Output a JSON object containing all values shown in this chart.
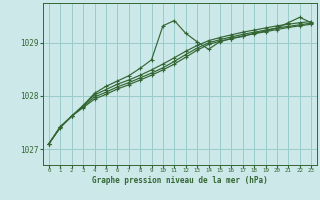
{
  "bg_color": "#cce8e8",
  "grid_color": "#99cccc",
  "line_color": "#336633",
  "ylim": [
    1026.7,
    1029.75
  ],
  "xlim": [
    -0.5,
    23.5
  ],
  "yticks": [
    1027,
    1028,
    1029
  ],
  "xticks": [
    0,
    1,
    2,
    3,
    4,
    5,
    6,
    7,
    8,
    9,
    10,
    11,
    12,
    13,
    14,
    15,
    16,
    17,
    18,
    19,
    20,
    21,
    22,
    23
  ],
  "xlabel": "Graphe pression niveau de la mer (hPa)",
  "series": [
    [
      1027.1,
      1027.4,
      1027.62,
      1027.82,
      1028.05,
      1028.18,
      1028.28,
      1028.38,
      1028.52,
      1028.68,
      1029.32,
      1029.42,
      1029.18,
      1029.02,
      1028.88,
      1029.02,
      1029.08,
      1029.12,
      1029.18,
      1029.22,
      1029.28,
      1029.38,
      1029.48,
      1029.38
    ],
    [
      1027.1,
      1027.42,
      1027.62,
      1027.82,
      1028.02,
      1028.12,
      1028.22,
      1028.3,
      1028.39,
      1028.49,
      1028.6,
      1028.72,
      1028.84,
      1028.95,
      1029.04,
      1029.1,
      1029.15,
      1029.2,
      1029.24,
      1029.28,
      1029.32,
      1029.35,
      1029.38,
      1029.4
    ],
    [
      1027.1,
      1027.42,
      1027.62,
      1027.8,
      1027.98,
      1028.07,
      1028.17,
      1028.25,
      1028.34,
      1028.43,
      1028.53,
      1028.65,
      1028.78,
      1028.9,
      1029.0,
      1029.06,
      1029.11,
      1029.16,
      1029.2,
      1029.24,
      1029.28,
      1029.31,
      1029.34,
      1029.37
    ],
    [
      1027.1,
      1027.42,
      1027.62,
      1027.78,
      1027.94,
      1028.03,
      1028.13,
      1028.21,
      1028.3,
      1028.39,
      1028.49,
      1028.6,
      1028.73,
      1028.86,
      1028.97,
      1029.03,
      1029.08,
      1029.13,
      1029.17,
      1029.21,
      1029.25,
      1029.29,
      1029.32,
      1029.35
    ]
  ]
}
